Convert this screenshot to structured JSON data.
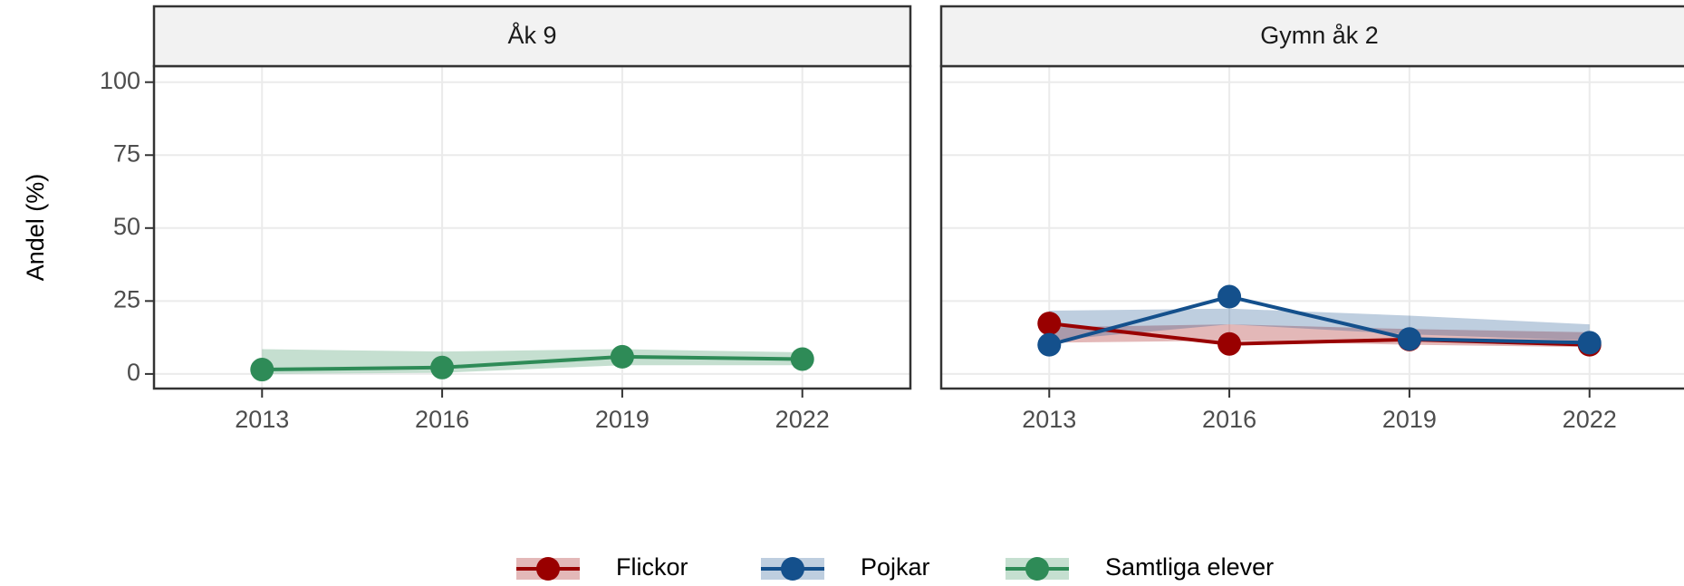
{
  "chart_data": {
    "type": "line",
    "ylabel": "Andel (%)",
    "x": [
      2013,
      2016,
      2019,
      2022
    ],
    "xlim": [
      2011.2,
      2023.8
    ],
    "xticks": [
      2013,
      2016,
      2019,
      2022
    ],
    "ylim": [
      -5,
      105.5
    ],
    "yticks": [
      0,
      25,
      50,
      75,
      100
    ],
    "grid": true,
    "legend": "bottom",
    "panels": [
      {
        "title": "Åk 9",
        "series": [
          {
            "name": "Samtliga elever",
            "color": "#2e8b57",
            "values": [
              1.5,
              2.2,
              5.9,
              5.1
            ],
            "lower": [
              0,
              0.4,
              3,
              3
            ],
            "upper": [
              8.5,
              7.7,
              8.5,
              7.4
            ]
          }
        ]
      },
      {
        "title": "Gymn åk 2",
        "series": [
          {
            "name": "Flickor",
            "color": "#990000",
            "values": [
              17.3,
              10.3,
              11.8,
              10
            ],
            "lower": [
              10.7,
              11.4,
              10,
              9.2
            ],
            "upper": [
              16,
              17,
              15.4,
              14.3
            ]
          },
          {
            "name": "Pojkar",
            "color": "#14508c",
            "values": [
              10,
              26.5,
              12,
              10.7
            ],
            "lower": [
              11.4,
              17,
              13.6,
              11.4
            ],
            "upper": [
              21.7,
              22.4,
              20,
              17
            ]
          }
        ]
      }
    ]
  }
}
